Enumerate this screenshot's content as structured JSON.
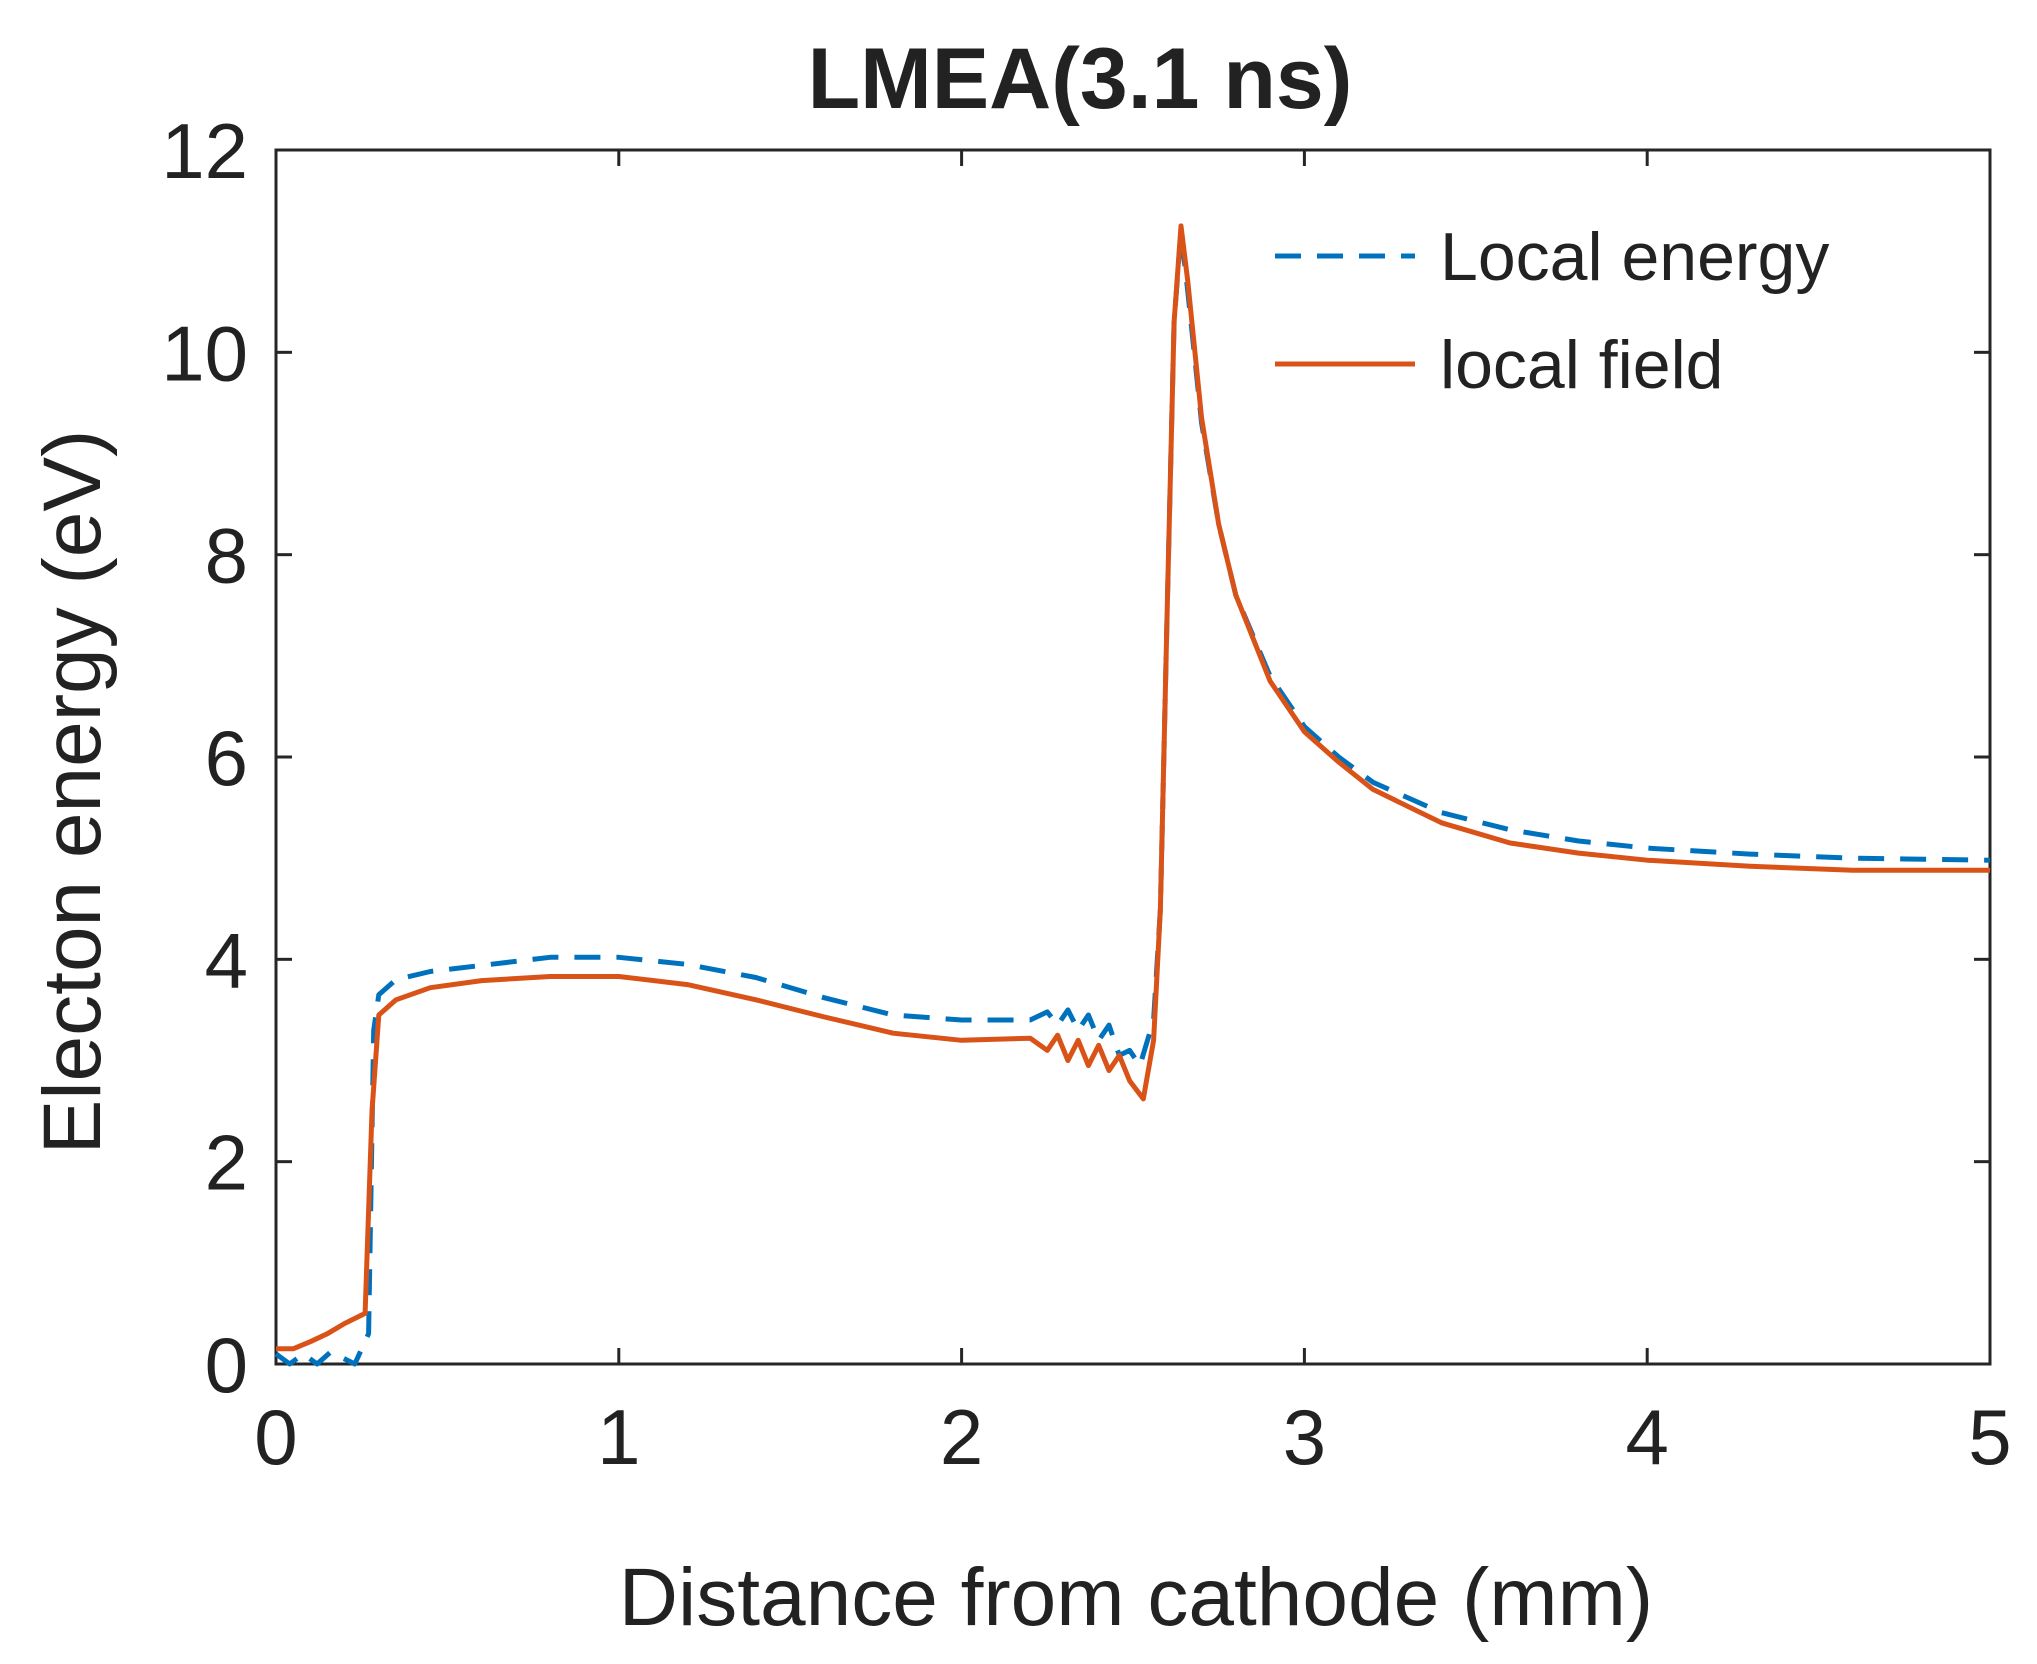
{
  "chart_data": {
    "type": "line",
    "title": "LMEA(3.1 ns)",
    "xlabel": "Distance from cathode (mm)",
    "ylabel": "Electon energy (eV)",
    "xlim": [
      0,
      5
    ],
    "ylim": [
      0,
      12
    ],
    "xticks": [
      0,
      1,
      2,
      3,
      4,
      5
    ],
    "yticks": [
      0,
      2,
      4,
      6,
      8,
      10,
      12
    ],
    "grid": false,
    "legend_position": "top-right",
    "series": [
      {
        "name": "Local energy",
        "style": "dashed",
        "color": "#0072BD",
        "points": [
          [
            0.0,
            0.1
          ],
          [
            0.04,
            0.0
          ],
          [
            0.08,
            0.1
          ],
          [
            0.12,
            0.0
          ],
          [
            0.16,
            0.12
          ],
          [
            0.2,
            0.05
          ],
          [
            0.23,
            0.0
          ],
          [
            0.25,
            0.15
          ],
          [
            0.27,
            0.3
          ],
          [
            0.285,
            3.3
          ],
          [
            0.3,
            3.65
          ],
          [
            0.35,
            3.8
          ],
          [
            0.45,
            3.88
          ],
          [
            0.6,
            3.94
          ],
          [
            0.8,
            4.02
          ],
          [
            1.0,
            4.02
          ],
          [
            1.2,
            3.95
          ],
          [
            1.4,
            3.82
          ],
          [
            1.6,
            3.62
          ],
          [
            1.8,
            3.45
          ],
          [
            2.0,
            3.4
          ],
          [
            2.2,
            3.4
          ],
          [
            2.25,
            3.48
          ],
          [
            2.28,
            3.35
          ],
          [
            2.31,
            3.5
          ],
          [
            2.34,
            3.3
          ],
          [
            2.37,
            3.45
          ],
          [
            2.4,
            3.2
          ],
          [
            2.43,
            3.35
          ],
          [
            2.46,
            3.05
          ],
          [
            2.49,
            3.1
          ],
          [
            2.52,
            2.95
          ],
          [
            2.56,
            3.4
          ],
          [
            2.58,
            4.5
          ],
          [
            2.6,
            7.5
          ],
          [
            2.62,
            10.3
          ],
          [
            2.64,
            11.2
          ],
          [
            2.66,
            10.6
          ],
          [
            2.7,
            9.3
          ],
          [
            2.75,
            8.3
          ],
          [
            2.8,
            7.6
          ],
          [
            2.9,
            6.8
          ],
          [
            3.0,
            6.3
          ],
          [
            3.1,
            6.0
          ],
          [
            3.2,
            5.75
          ],
          [
            3.4,
            5.45
          ],
          [
            3.6,
            5.28
          ],
          [
            3.8,
            5.17
          ],
          [
            4.0,
            5.1
          ],
          [
            4.3,
            5.04
          ],
          [
            4.6,
            5.0
          ],
          [
            5.0,
            4.98
          ]
        ]
      },
      {
        "name": "local field",
        "style": "solid",
        "color": "#D95319",
        "points": [
          [
            0.0,
            0.15
          ],
          [
            0.05,
            0.15
          ],
          [
            0.1,
            0.22
          ],
          [
            0.15,
            0.3
          ],
          [
            0.2,
            0.4
          ],
          [
            0.26,
            0.5
          ],
          [
            0.28,
            2.5
          ],
          [
            0.3,
            3.45
          ],
          [
            0.35,
            3.6
          ],
          [
            0.45,
            3.72
          ],
          [
            0.6,
            3.79
          ],
          [
            0.8,
            3.83
          ],
          [
            1.0,
            3.83
          ],
          [
            1.2,
            3.75
          ],
          [
            1.4,
            3.6
          ],
          [
            1.6,
            3.43
          ],
          [
            1.8,
            3.27
          ],
          [
            2.0,
            3.2
          ],
          [
            2.2,
            3.22
          ],
          [
            2.25,
            3.1
          ],
          [
            2.28,
            3.25
          ],
          [
            2.31,
            3.0
          ],
          [
            2.34,
            3.2
          ],
          [
            2.37,
            2.95
          ],
          [
            2.4,
            3.15
          ],
          [
            2.43,
            2.9
          ],
          [
            2.46,
            3.05
          ],
          [
            2.49,
            2.8
          ],
          [
            2.53,
            2.62
          ],
          [
            2.56,
            3.2
          ],
          [
            2.58,
            4.5
          ],
          [
            2.6,
            7.5
          ],
          [
            2.62,
            10.3
          ],
          [
            2.64,
            11.25
          ],
          [
            2.66,
            10.7
          ],
          [
            2.7,
            9.35
          ],
          [
            2.75,
            8.3
          ],
          [
            2.8,
            7.6
          ],
          [
            2.9,
            6.75
          ],
          [
            3.0,
            6.25
          ],
          [
            3.1,
            5.95
          ],
          [
            3.2,
            5.68
          ],
          [
            3.4,
            5.35
          ],
          [
            3.6,
            5.15
          ],
          [
            3.8,
            5.05
          ],
          [
            4.0,
            4.98
          ],
          [
            4.3,
            4.92
          ],
          [
            4.6,
            4.88
          ],
          [
            5.0,
            4.88
          ]
        ]
      }
    ]
  }
}
